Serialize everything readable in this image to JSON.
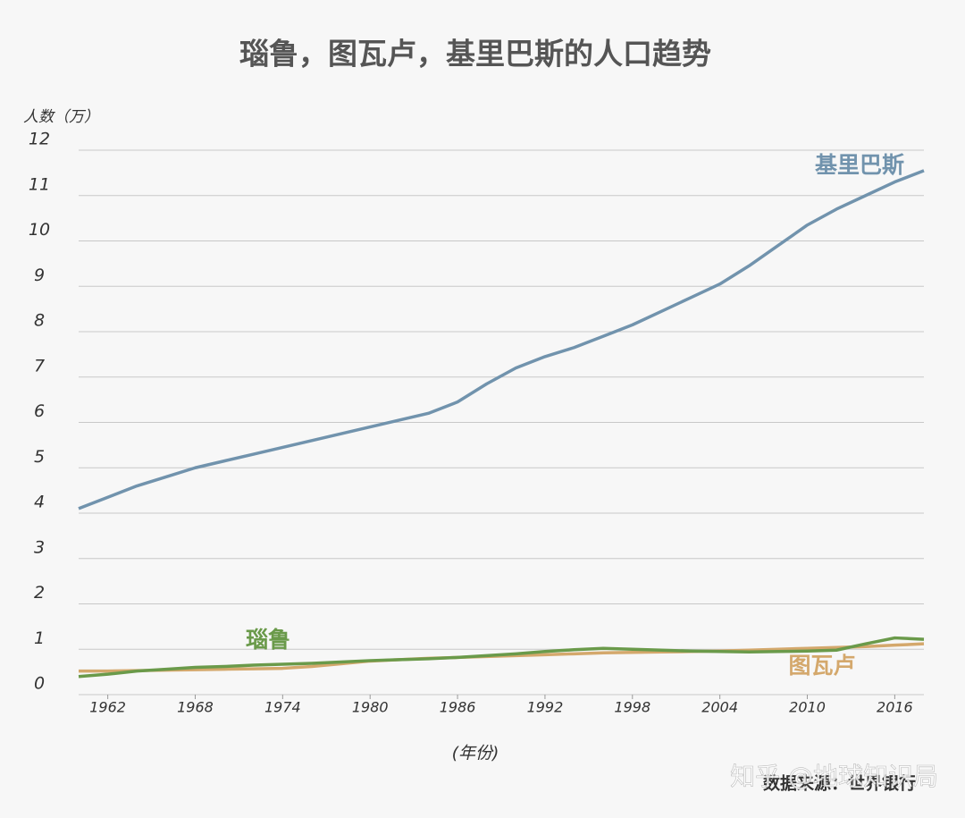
{
  "chart_data": {
    "type": "line",
    "title": "瑙鲁，图瓦卢，基里巴斯的人口趋势",
    "y_label": "人数（万）",
    "x_label": "(年份)",
    "source": "数据来源：世界银行",
    "watermark": "知乎 @地球知识局",
    "x": [
      1960,
      1962,
      1964,
      1966,
      1968,
      1970,
      1972,
      1974,
      1976,
      1978,
      1980,
      1982,
      1984,
      1986,
      1988,
      1990,
      1992,
      1994,
      1996,
      1998,
      2000,
      2002,
      2004,
      2006,
      2008,
      2010,
      2012,
      2014,
      2016,
      2018
    ],
    "series": [
      {
        "name": "基里巴斯",
        "color": "#7193ad",
        "values": [
          4.1,
          4.35,
          4.6,
          4.8,
          5.0,
          5.15,
          5.3,
          5.45,
          5.6,
          5.75,
          5.9,
          6.05,
          6.2,
          6.45,
          6.85,
          7.2,
          7.45,
          7.65,
          7.9,
          8.15,
          8.45,
          8.75,
          9.05,
          9.45,
          9.9,
          10.35,
          10.7,
          11.0,
          11.3,
          11.55
        ]
      },
      {
        "name": "瑙鲁",
        "color": "#6a9a4a",
        "values": [
          0.4,
          0.45,
          0.52,
          0.56,
          0.6,
          0.62,
          0.65,
          0.67,
          0.69,
          0.72,
          0.75,
          0.77,
          0.79,
          0.82,
          0.86,
          0.9,
          0.95,
          0.99,
          1.02,
          1.0,
          0.98,
          0.96,
          0.95,
          0.94,
          0.95,
          0.96,
          0.98,
          1.12,
          1.25,
          1.22
        ]
      },
      {
        "name": "图瓦卢",
        "color": "#d4a86c",
        "values": [
          0.52,
          0.52,
          0.53,
          0.54,
          0.55,
          0.56,
          0.57,
          0.58,
          0.62,
          0.68,
          0.74,
          0.77,
          0.8,
          0.82,
          0.84,
          0.86,
          0.88,
          0.9,
          0.92,
          0.93,
          0.94,
          0.95,
          0.96,
          0.98,
          1.0,
          1.02,
          1.04,
          1.06,
          1.09,
          1.12
        ]
      }
    ],
    "xlim": [
      1960,
      2018
    ],
    "xticks": [
      1962,
      1968,
      1974,
      1980,
      1986,
      1992,
      1998,
      2004,
      2010,
      2016
    ],
    "ylim": [
      0,
      12
    ],
    "yticks": [
      0,
      1,
      2,
      3,
      4,
      5,
      6,
      7,
      8,
      9,
      10,
      11,
      12
    ],
    "grid": true
  }
}
